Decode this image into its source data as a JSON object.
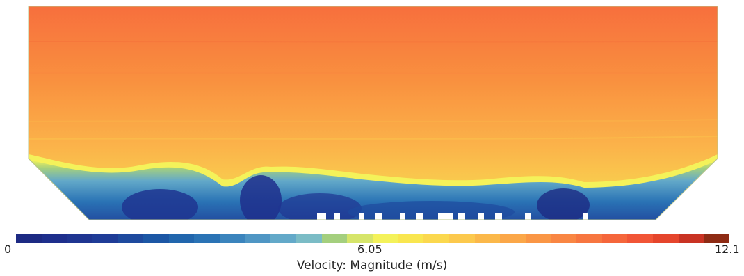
{
  "colorbar": {
    "min_label": "0",
    "mid_label": "6.05",
    "max_label": "12.1",
    "title": "Velocity: Magnitude (m/s)",
    "colors": [
      "#1d2a83",
      "#1e2f8c",
      "#1f3591",
      "#1f3c97",
      "#1e4a9e",
      "#1c57a5",
      "#2166ad",
      "#2a73b5",
      "#3b84bd",
      "#4f96c4",
      "#63a9c9",
      "#7bbcc6",
      "#a4cf7e",
      "#d6e56a",
      "#f4f25a",
      "#f9e64f",
      "#fbd84e",
      "#fcc94d",
      "#fbb84a",
      "#fba748",
      "#fa9645",
      "#f98643",
      "#f77640",
      "#f5663b",
      "#f15536",
      "#e5452c",
      "#c93323",
      "#8e2b14"
    ]
  },
  "field_colors": {
    "top": "#f7703e",
    "upper": "#f9913f",
    "mid": "#fbb84a",
    "low": "#f6ea55",
    "green": "#a4cf7e",
    "cyan": "#6ab4d0",
    "blue": "#2d6fb6",
    "deep": "#1d2a83"
  }
}
